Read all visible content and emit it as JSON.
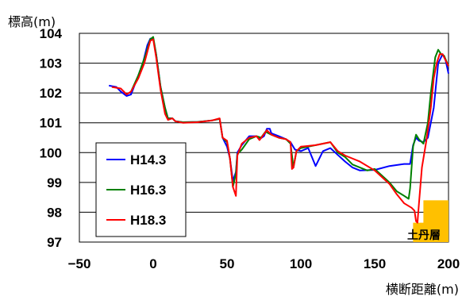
{
  "chart_data": {
    "type": "line",
    "ylabel": "標高(m)",
    "xlabel": "横断距離(m)",
    "xlim": [
      -50,
      200
    ],
    "ylim": [
      97,
      104
    ],
    "x_ticks": [
      -50,
      0,
      50,
      100,
      150,
      200
    ],
    "y_ticks": [
      97,
      98,
      99,
      100,
      101,
      102,
      103,
      104
    ],
    "grid": "horizontal",
    "legend_position": "bottom-left",
    "annotation": {
      "label": "土丹層",
      "color": "#FFC000"
    },
    "annotation_region": [
      [
        176,
        97
      ],
      [
        176,
        97.65
      ],
      [
        183,
        97.65
      ],
      [
        183,
        98.4
      ],
      [
        200,
        98.4
      ],
      [
        200,
        97
      ]
    ],
    "series": [
      {
        "name": "H14.3",
        "color": "#0000FF",
        "points": [
          [
            -30,
            102.25
          ],
          [
            -25,
            102.2
          ],
          [
            -22,
            102.05
          ],
          [
            -18,
            101.9
          ],
          [
            -15,
            101.95
          ],
          [
            -10,
            102.6
          ],
          [
            -7,
            103.0
          ],
          [
            -4,
            103.6
          ],
          [
            -2,
            103.82
          ],
          [
            0,
            103.83
          ],
          [
            2,
            103.3
          ],
          [
            5,
            102.2
          ],
          [
            8,
            101.5
          ],
          [
            10,
            101.15
          ],
          [
            13,
            101.15
          ],
          [
            15,
            101.05
          ],
          [
            20,
            101.02
          ],
          [
            30,
            101.03
          ],
          [
            40,
            101.08
          ],
          [
            45,
            101.13
          ],
          [
            47,
            100.5
          ],
          [
            50,
            100.2
          ],
          [
            52,
            99.8
          ],
          [
            54,
            99.05
          ],
          [
            56,
            99.35
          ],
          [
            57,
            100.0
          ],
          [
            60,
            100.25
          ],
          [
            65,
            100.55
          ],
          [
            70,
            100.55
          ],
          [
            72,
            100.45
          ],
          [
            75,
            100.55
          ],
          [
            77,
            100.8
          ],
          [
            79,
            100.8
          ],
          [
            80,
            100.65
          ],
          [
            85,
            100.55
          ],
          [
            90,
            100.45
          ],
          [
            93,
            100.35
          ],
          [
            96,
            100.1
          ],
          [
            100,
            100.05
          ],
          [
            105,
            100.15
          ],
          [
            110,
            99.55
          ],
          [
            115,
            100.05
          ],
          [
            120,
            100.15
          ],
          [
            130,
            99.7
          ],
          [
            135,
            99.5
          ],
          [
            140,
            99.4
          ],
          [
            150,
            99.42
          ],
          [
            160,
            99.55
          ],
          [
            170,
            99.62
          ],
          [
            174,
            99.62
          ],
          [
            176,
            100.25
          ],
          [
            178,
            100.5
          ],
          [
            180,
            100.4
          ],
          [
            183,
            100.35
          ],
          [
            186,
            100.5
          ],
          [
            190,
            101.5
          ],
          [
            193,
            103.0
          ],
          [
            196,
            103.3
          ],
          [
            198,
            103.1
          ],
          [
            200,
            102.65
          ]
        ]
      },
      {
        "name": "H16.3",
        "color": "#008000",
        "points": [
          [
            -15,
            102.05
          ],
          [
            -10,
            102.6
          ],
          [
            -5,
            103.3
          ],
          [
            -2,
            103.8
          ],
          [
            0,
            103.88
          ],
          [
            2,
            103.3
          ],
          [
            5,
            102.2
          ],
          [
            8,
            101.5
          ],
          [
            10,
            101.15
          ],
          [
            13,
            101.15
          ],
          [
            15,
            101.05
          ],
          [
            20,
            101.02
          ],
          [
            30,
            101.03
          ],
          [
            40,
            101.08
          ],
          [
            45,
            101.13
          ],
          [
            47,
            100.5
          ],
          [
            50,
            100.35
          ],
          [
            52,
            99.8
          ],
          [
            54,
            98.85
          ],
          [
            56,
            99.3
          ],
          [
            57,
            99.95
          ],
          [
            60,
            100.1
          ],
          [
            65,
            100.45
          ],
          [
            70,
            100.55
          ],
          [
            73,
            100.5
          ],
          [
            76,
            100.7
          ],
          [
            80,
            100.6
          ],
          [
            85,
            100.5
          ],
          [
            90,
            100.45
          ],
          [
            93,
            100.3
          ],
          [
            95,
            99.5
          ],
          [
            97,
            100.05
          ],
          [
            100,
            100.15
          ],
          [
            110,
            100.25
          ],
          [
            120,
            100.35
          ],
          [
            125,
            100.0
          ],
          [
            130,
            99.85
          ],
          [
            135,
            99.6
          ],
          [
            140,
            99.5
          ],
          [
            145,
            99.4
          ],
          [
            150,
            99.45
          ],
          [
            160,
            99.0
          ],
          [
            165,
            98.7
          ],
          [
            170,
            98.55
          ],
          [
            173,
            98.45
          ],
          [
            174,
            98.8
          ],
          [
            176,
            100.2
          ],
          [
            178,
            100.6
          ],
          [
            180,
            100.45
          ],
          [
            183,
            100.3
          ],
          [
            186,
            101.0
          ],
          [
            188,
            102.0
          ],
          [
            191,
            103.2
          ],
          [
            193,
            103.45
          ],
          [
            195,
            103.3
          ],
          [
            197,
            103.25
          ],
          [
            200,
            102.9
          ]
        ]
      },
      {
        "name": "H18.3",
        "color": "#FF0000",
        "points": [
          [
            -28,
            102.2
          ],
          [
            -22,
            102.15
          ],
          [
            -18,
            101.95
          ],
          [
            -15,
            102.05
          ],
          [
            -10,
            102.5
          ],
          [
            -6,
            103.0
          ],
          [
            -2,
            103.75
          ],
          [
            0,
            103.8
          ],
          [
            2,
            103.2
          ],
          [
            5,
            102.1
          ],
          [
            8,
            101.3
          ],
          [
            10,
            101.1
          ],
          [
            13,
            101.15
          ],
          [
            15,
            101.05
          ],
          [
            20,
            101.0
          ],
          [
            30,
            101.02
          ],
          [
            40,
            101.08
          ],
          [
            45,
            101.15
          ],
          [
            47,
            100.5
          ],
          [
            50,
            100.4
          ],
          [
            52,
            99.8
          ],
          [
            54,
            98.85
          ],
          [
            56,
            98.55
          ],
          [
            57,
            99.9
          ],
          [
            60,
            100.3
          ],
          [
            65,
            100.5
          ],
          [
            70,
            100.55
          ],
          [
            72,
            100.42
          ],
          [
            74,
            100.55
          ],
          [
            77,
            100.75
          ],
          [
            80,
            100.6
          ],
          [
            85,
            100.5
          ],
          [
            90,
            100.45
          ],
          [
            93,
            100.35
          ],
          [
            94,
            99.45
          ],
          [
            95,
            99.5
          ],
          [
            97,
            100.05
          ],
          [
            100,
            100.2
          ],
          [
            110,
            100.25
          ],
          [
            120,
            100.35
          ],
          [
            125,
            100.05
          ],
          [
            130,
            99.9
          ],
          [
            140,
            99.7
          ],
          [
            150,
            99.4
          ],
          [
            160,
            98.95
          ],
          [
            165,
            98.6
          ],
          [
            170,
            98.3
          ],
          [
            175,
            98.15
          ],
          [
            177,
            98.05
          ],
          [
            178,
            97.7
          ],
          [
            179,
            97.65
          ],
          [
            180,
            98.3
          ],
          [
            182,
            99.5
          ],
          [
            185,
            100.4
          ],
          [
            188,
            101.5
          ],
          [
            190,
            102.5
          ],
          [
            192,
            103.0
          ],
          [
            194,
            103.3
          ],
          [
            196,
            103.3
          ],
          [
            198,
            103.1
          ],
          [
            200,
            102.9
          ]
        ]
      }
    ]
  }
}
